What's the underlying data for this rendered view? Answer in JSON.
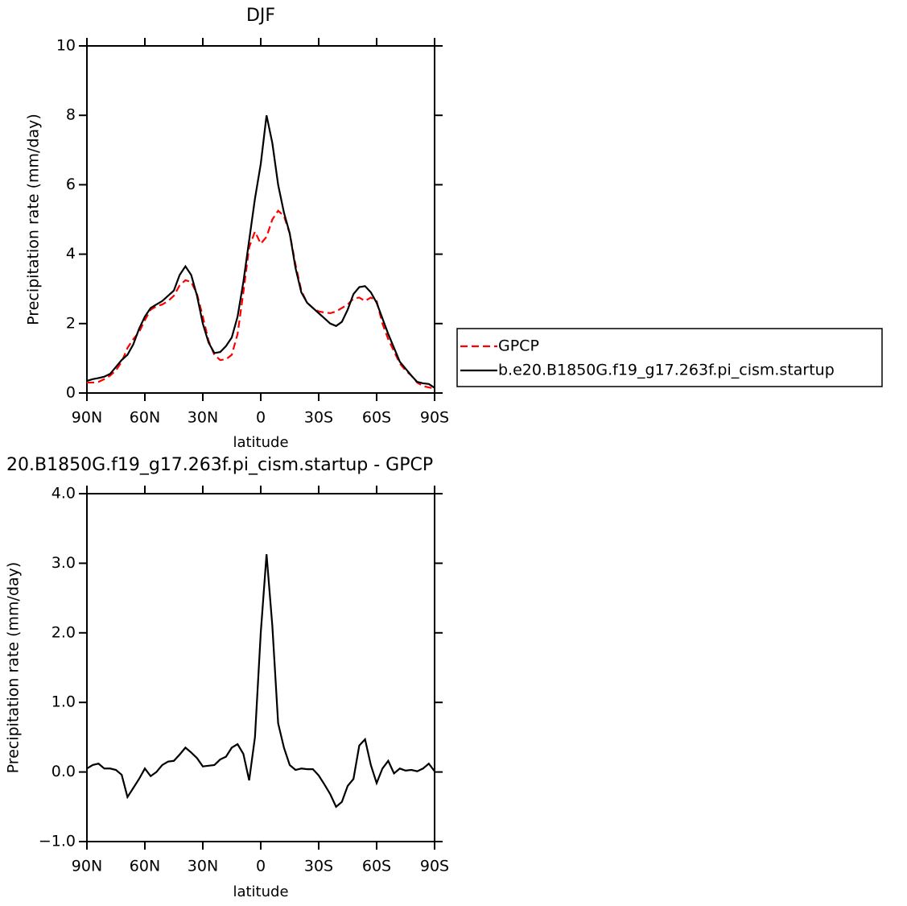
{
  "chart_data": [
    {
      "type": "line",
      "title": "DJF",
      "xlabel": "latitude",
      "ylabel": "Precipitation rate (mm/day)",
      "x": [
        90,
        87,
        84,
        81,
        78,
        75,
        72,
        69,
        66,
        63,
        60,
        57,
        54,
        51,
        48,
        45,
        42,
        39,
        36,
        33,
        30,
        27,
        24,
        21,
        18,
        15,
        12,
        9,
        6,
        3,
        0,
        -3,
        -6,
        -9,
        -12,
        -15,
        -18,
        -21,
        -24,
        -27,
        -30,
        -33,
        -36,
        -39,
        -42,
        -45,
        -48,
        -51,
        -54,
        -57,
        -60,
        -63,
        -66,
        -69,
        -72,
        -75,
        -78,
        -81,
        -84,
        -87,
        -90
      ],
      "xlim": [
        90,
        -90
      ],
      "xticks": [
        {
          "value": 90,
          "label": "90N"
        },
        {
          "value": 60,
          "label": "60N"
        },
        {
          "value": 30,
          "label": "30N"
        },
        0,
        {
          "value": -30,
          "label": "30S"
        },
        {
          "value": -60,
          "label": "60S"
        },
        {
          "value": -90,
          "label": "90S"
        }
      ],
      "ylim": [
        0,
        10
      ],
      "yticks": [
        0,
        2,
        4,
        6,
        8,
        10
      ],
      "legend": "right",
      "series": [
        {
          "name": "GPCP",
          "color": "#ff0000",
          "dash": true,
          "values": [
            0.3,
            0.3,
            0.32,
            0.4,
            0.5,
            0.65,
            0.9,
            1.3,
            1.55,
            1.75,
            2.1,
            2.4,
            2.5,
            2.55,
            2.65,
            2.8,
            3.1,
            3.25,
            3.2,
            2.85,
            2.2,
            1.5,
            1.1,
            0.95,
            0.97,
            1.1,
            1.7,
            2.9,
            4.2,
            4.65,
            4.3,
            4.5,
            5.0,
            5.25,
            5.1,
            4.6,
            3.7,
            2.95,
            2.6,
            2.45,
            2.35,
            2.32,
            2.3,
            2.35,
            2.45,
            2.55,
            2.72,
            2.75,
            2.65,
            2.75,
            2.65,
            2.0,
            1.55,
            1.2,
            0.85,
            0.65,
            0.5,
            0.3,
            0.2,
            0.16,
            0.13
          ]
        },
        {
          "name": "b.e20.B1850G.f19_g17.263f.pi_cism.startup",
          "color": "#000000",
          "dash": false,
          "values": [
            0.35,
            0.4,
            0.43,
            0.47,
            0.55,
            0.75,
            0.95,
            1.1,
            1.4,
            1.85,
            2.2,
            2.45,
            2.55,
            2.65,
            2.8,
            2.95,
            3.4,
            3.65,
            3.4,
            2.8,
            2.0,
            1.45,
            1.15,
            1.18,
            1.35,
            1.6,
            2.2,
            3.2,
            4.4,
            5.6,
            6.6,
            8.0,
            7.2,
            6.0,
            5.2,
            4.6,
            3.6,
            2.9,
            2.6,
            2.45,
            2.3,
            2.15,
            2.0,
            1.93,
            2.05,
            2.4,
            2.85,
            3.05,
            3.08,
            2.9,
            2.6,
            2.15,
            1.7,
            1.3,
            0.9,
            0.7,
            0.5,
            0.32,
            0.28,
            0.26,
            0.15
          ]
        }
      ]
    },
    {
      "type": "line",
      "title": "20.B1850G.f19_g17.263f.pi_cism.startup - GPCP",
      "xlabel": "latitude",
      "ylabel": "Precipitation rate (mm/day)",
      "x": [
        90,
        87,
        84,
        81,
        78,
        75,
        72,
        69,
        66,
        63,
        60,
        57,
        54,
        51,
        48,
        45,
        42,
        39,
        36,
        33,
        30,
        27,
        24,
        21,
        18,
        15,
        12,
        9,
        6,
        3,
        0,
        -3,
        -6,
        -9,
        -12,
        -15,
        -18,
        -21,
        -24,
        -27,
        -30,
        -33,
        -36,
        -39,
        -42,
        -45,
        -48,
        -51,
        -54,
        -57,
        -60,
        -63,
        -66,
        -69,
        -72,
        -75,
        -78,
        -81,
        -84,
        -87,
        -90
      ],
      "xlim": [
        90,
        -90
      ],
      "xticks": [
        {
          "value": 90,
          "label": "90N"
        },
        {
          "value": 60,
          "label": "60N"
        },
        {
          "value": 30,
          "label": "30N"
        },
        0,
        {
          "value": -30,
          "label": "30S"
        },
        {
          "value": -60,
          "label": "60S"
        },
        {
          "value": -90,
          "label": "90S"
        }
      ],
      "ylim": [
        -1,
        4
      ],
      "yticks": [
        {
          "value": -1,
          "label": "−1.0"
        },
        {
          "value": 0,
          "label": "0.0"
        },
        {
          "value": 1,
          "label": "1.0"
        },
        {
          "value": 2,
          "label": "2.0"
        },
        {
          "value": 3,
          "label": "3.0"
        },
        {
          "value": 4,
          "label": "4.0"
        }
      ],
      "series": [
        {
          "color": "#000000",
          "dash": false,
          "values": [
            0.05,
            0.1,
            0.12,
            0.05,
            0.05,
            0.03,
            -0.04,
            -0.36,
            -0.23,
            -0.1,
            0.05,
            -0.06,
            0.0,
            0.1,
            0.15,
            0.16,
            0.25,
            0.35,
            0.28,
            0.2,
            0.08,
            0.09,
            0.1,
            0.18,
            0.22,
            0.35,
            0.4,
            0.26,
            -0.12,
            0.5,
            2.0,
            3.13,
            2.1,
            0.7,
            0.35,
            0.1,
            0.03,
            0.05,
            0.04,
            0.04,
            -0.05,
            -0.18,
            -0.32,
            -0.5,
            -0.43,
            -0.2,
            -0.1,
            0.38,
            0.47,
            0.1,
            -0.16,
            0.05,
            0.16,
            -0.02,
            0.05,
            0.02,
            0.03,
            0.01,
            0.05,
            0.12,
            0.01
          ]
        }
      ]
    }
  ]
}
